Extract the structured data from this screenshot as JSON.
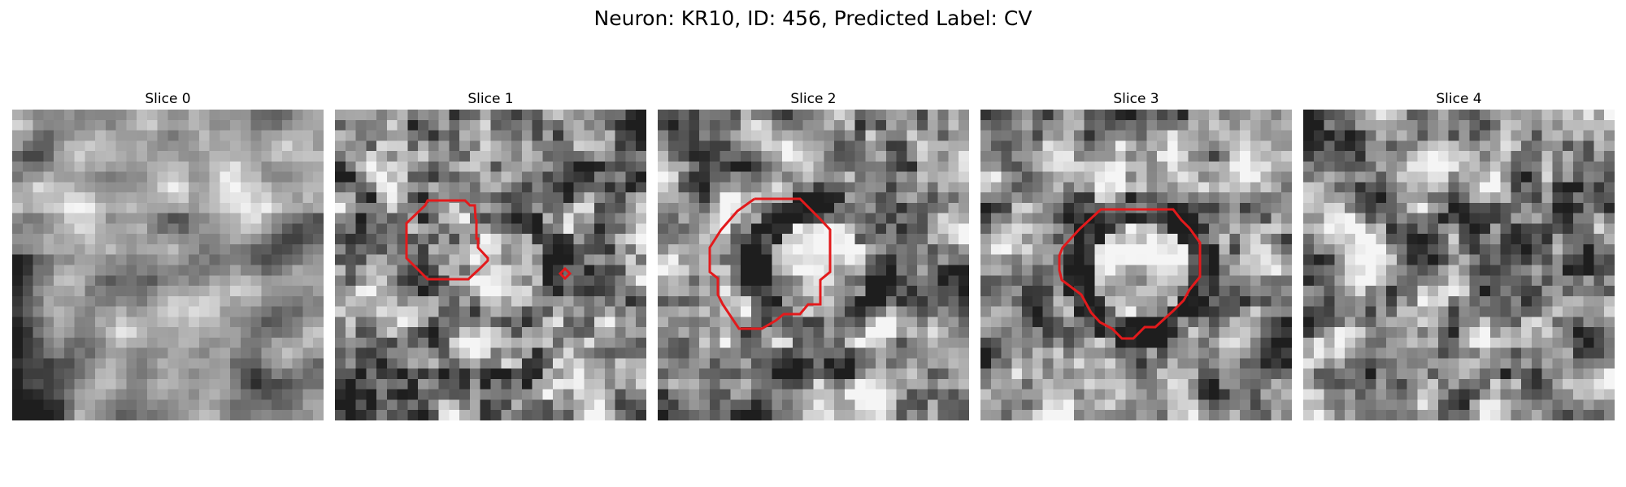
{
  "figure": {
    "title": "Neuron: KR10, ID: 456, Predicted Label: CV",
    "contour_color": "#e31a1c",
    "colormap": "gray"
  },
  "slices": [
    {
      "title": "Slice 0",
      "has_roi": false
    },
    {
      "title": "Slice 1",
      "has_roi": true
    },
    {
      "title": "Slice 2",
      "has_roi": true
    },
    {
      "title": "Slice 3",
      "has_roi": true
    },
    {
      "title": "Slice 4",
      "has_roi": false
    }
  ]
}
